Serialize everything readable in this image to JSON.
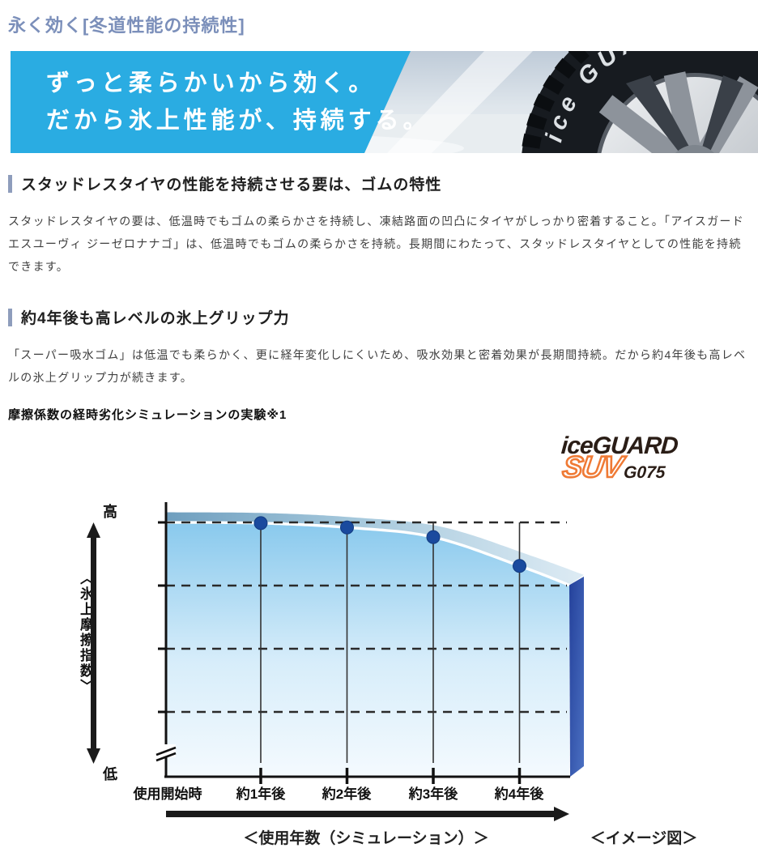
{
  "page": {
    "title": "永く効く[冬道性能の持続性]"
  },
  "banner": {
    "line1": "ずっと柔らかいから効く。",
    "line2": "だから氷上性能が、持続する。",
    "tire_text": "ice GUARD",
    "blue": "#2aace2"
  },
  "sections": [
    {
      "heading": "スタッドレスタイヤの性能を持続させる要は、ゴムの特性",
      "body": "スタッドレスタイヤの要は、低温時でもゴムの柔らかさを持続し、凍結路面の凹凸にタイヤがしっかり密着すること。「アイスガードエスユーヴィ ジーゼロナナゴ」は、低温時でもゴムの柔らかさを持続。長期間にわたって、スタッドレスタイヤとしての性能を持続できます。"
    },
    {
      "heading": "約4年後も高レベルの氷上グリップ力",
      "body": "「スーパー吸水ゴム」は低温でも柔らかく、更に経年変化しにくいため、吸水効果と密着効果が長期間持続。だから約4年後も高レベルの氷上グリップ力が続きます。"
    }
  ],
  "experiment_label": "摩擦係数の経時劣化シミュレーションの実験※1",
  "logo": {
    "name": "iceGUARD",
    "sub": "SUV",
    "model": "G075",
    "accent": "#ef7a35"
  },
  "chart_data": {
    "type": "area",
    "title": "摩擦係数の経時劣化シミュレーションの実験※1",
    "categories": [
      "使用開始時",
      "約1年後",
      "約2年後",
      "約3年後",
      "約4年後"
    ],
    "values": [
      100,
      99.7,
      98.0,
      94.2,
      82.8
    ],
    "right_edge_value": 75.2,
    "gridline_values": [
      100,
      75,
      50,
      25
    ],
    "ylabel": "〈氷上摩擦指数〉",
    "y_high_label": "高",
    "y_low_label": "低",
    "xlabel": "＜使用年数（シミュレーション）＞",
    "note": "＜イメージ図＞",
    "legend": "none",
    "grid": "dashed-horizontal",
    "colors": {
      "area_top": "#89c9ed",
      "area_bottom": "#f4fafe",
      "band_left": "#6e9ebe",
      "band_right": "#ddebf4",
      "side_panel": "#24419b",
      "dot": "#1a4a9e"
    }
  }
}
